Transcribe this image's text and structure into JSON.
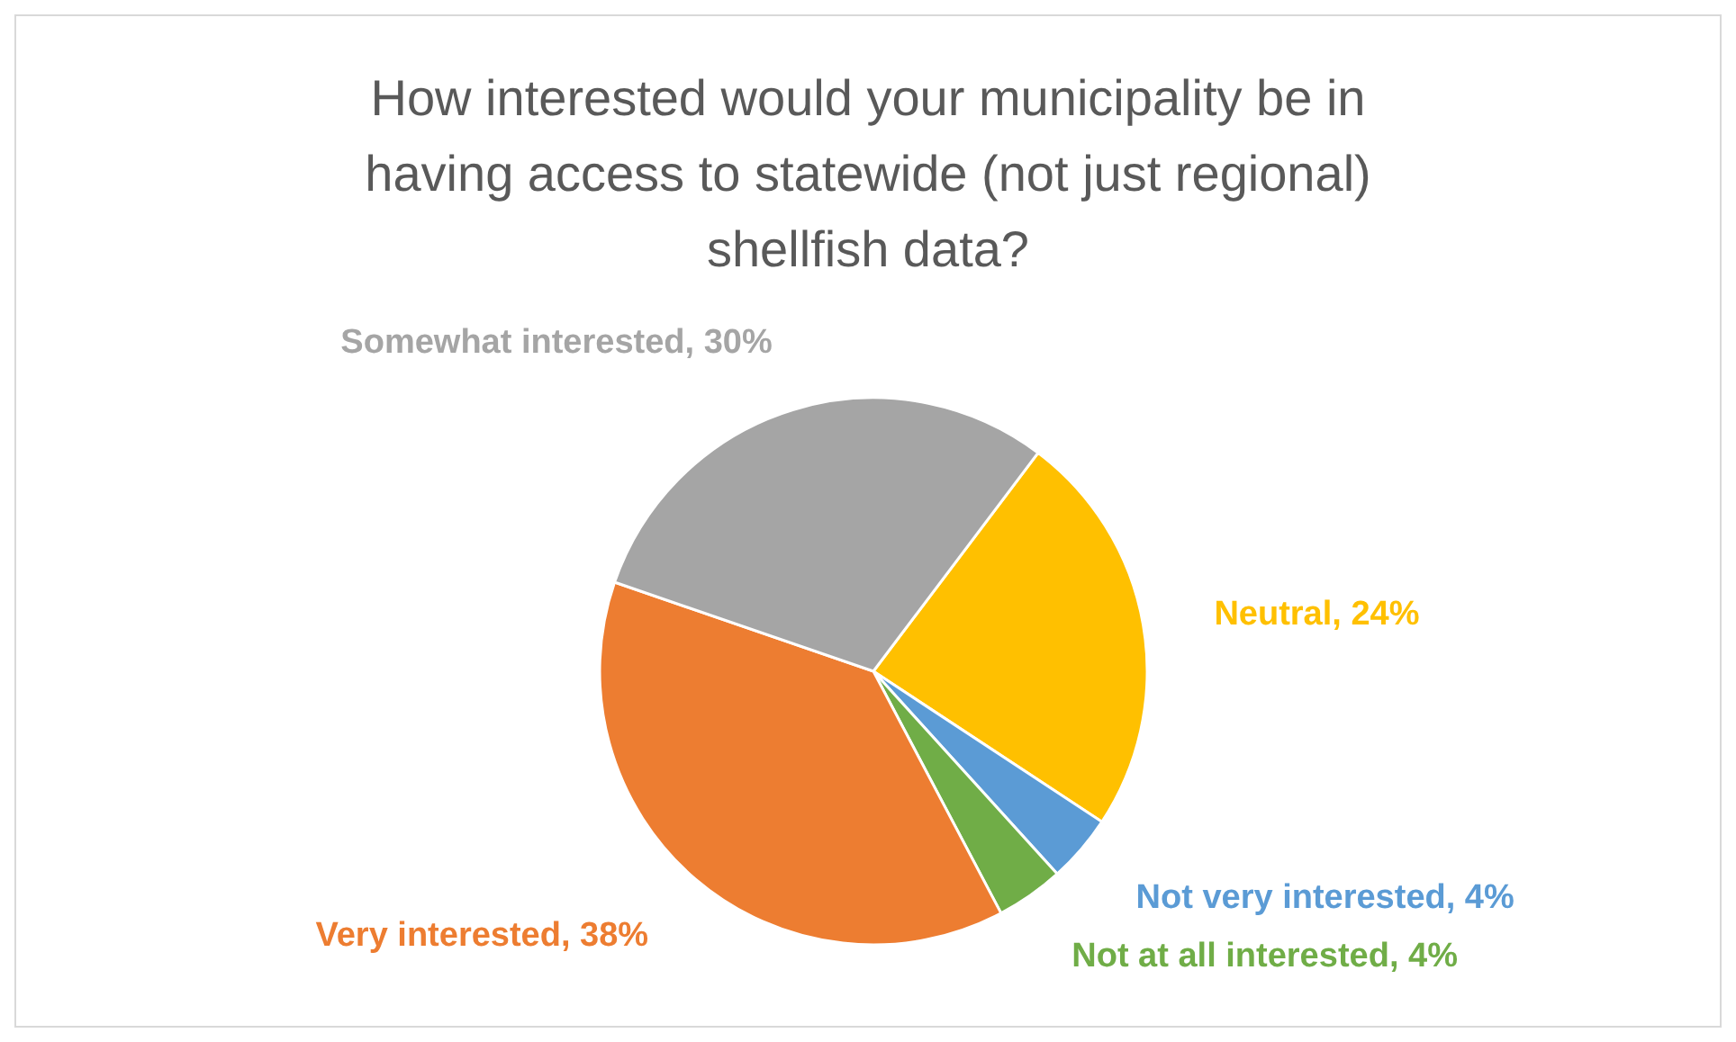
{
  "chart_data": {
    "type": "pie",
    "title": "How interested would your municipality be in having access to statewide (not just regional) shellfish data?",
    "categories": [
      "Neutral",
      "Not very interested",
      "Not at all interested",
      "Very interested",
      "Somewhat interested"
    ],
    "values": [
      24,
      4,
      4,
      38,
      30
    ],
    "colors": [
      "#ffc000",
      "#5b9bd5",
      "#70ad47",
      "#ed7d31",
      "#a5a5a5"
    ],
    "value_labels": [
      "24%",
      "4%",
      "4%",
      "38%",
      "30%"
    ],
    "legend": false
  }
}
